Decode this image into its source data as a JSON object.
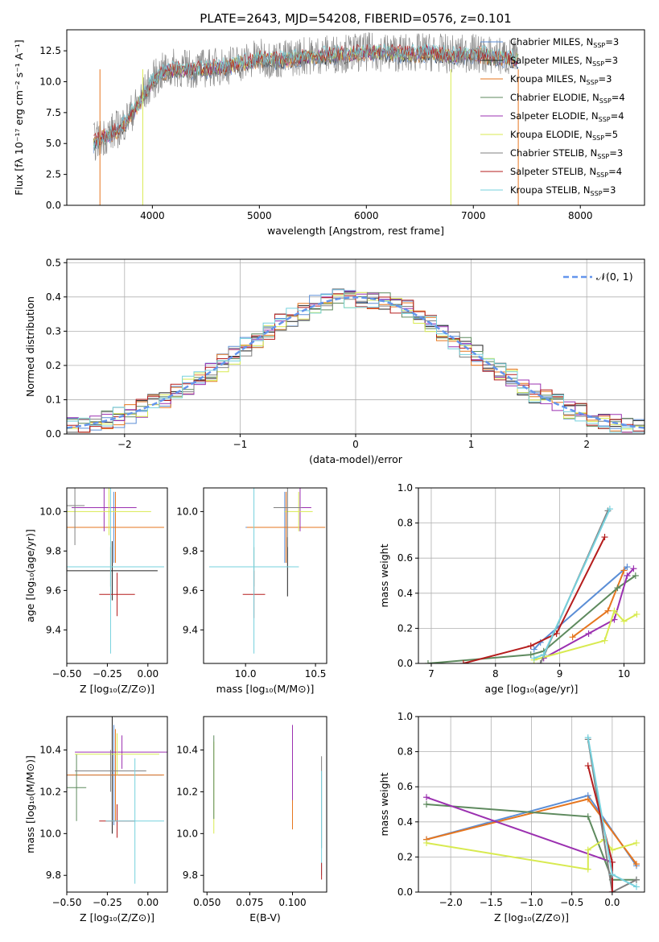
{
  "figure": {
    "title": "PLATE=2643, MJD=54208, FIBERID=0576, z=0.101"
  },
  "colors": {
    "Chabrier MILES": "#5b8ed6",
    "Salpeter MILES": "#222222",
    "Kroupa MILES": "#e6761f",
    "Chabrier ELODIE": "#5e8a5e",
    "Salpeter ELODIE": "#9b30b0",
    "Kroupa ELODIE": "#d8ea50",
    "Chabrier STELIB": "#808080",
    "Salpeter STELIB": "#b51d1d",
    "Kroupa STELIB": "#76d1dd",
    "normal_curve": "#6495ed",
    "grid": "#b0b0b0"
  },
  "chart_data": [
    {
      "id": "spectrum",
      "type": "line",
      "title": "PLATE=2643, MJD=54208, FIBERID=0576, z=0.101",
      "xlabel": "wavelength [Angstrom, rest frame]",
      "ylabel": "Flux [fλ 10⁻¹⁷ erg cm⁻² s⁻¹ A⁻¹]",
      "xlim": [
        3200,
        8600
      ],
      "ylim": [
        0,
        14.2
      ],
      "xticks": [
        "4000",
        "5000",
        "6000",
        "7000",
        "8000"
      ],
      "yticks": [
        "0.0",
        "2.5",
        "5.0",
        "7.5",
        "10.0",
        "12.5"
      ],
      "grid": false,
      "legend_position": "right",
      "legend": [
        {
          "base": "Chabrier MILES, N",
          "n": "=3"
        },
        {
          "base": "Salpeter MILES, N",
          "n": "=3"
        },
        {
          "base": "Kroupa MILES, N",
          "n": "=3"
        },
        {
          "base": "Chabrier ELODIE, N",
          "n": "=4"
        },
        {
          "base": "Salpeter ELODIE, N",
          "n": "=4"
        },
        {
          "base": "Kroupa ELODIE, N",
          "n": "=5"
        },
        {
          "base": "Chabrier STELIB, N",
          "n": "=3"
        },
        {
          "base": "Salpeter STELIB, N",
          "n": "=4"
        },
        {
          "base": "Kroupa STELIB, N",
          "n": "=3"
        }
      ],
      "legend_sub": "SSP",
      "data": {
        "x": [
          3450,
          3550,
          3700,
          3800,
          3900,
          4000,
          4100,
          4200,
          4400,
          4600,
          4800,
          5000,
          5200,
          5400,
          5600,
          5800,
          6000,
          6200,
          6400,
          6600,
          6800,
          7000,
          7200,
          7400
        ],
        "y": [
          5.0,
          5.5,
          6.2,
          7.3,
          8.6,
          10.0,
          10.7,
          11.0,
          10.9,
          11.1,
          11.4,
          11.8,
          11.7,
          12.0,
          12.1,
          12.2,
          12.3,
          12.3,
          12.2,
          12.3,
          12.1,
          12.2,
          12.0,
          11.8
        ]
      }
    },
    {
      "id": "residuals",
      "type": "line",
      "xlabel": "(data-model)/error",
      "ylabel": "Normed distribution",
      "xlim": [
        -2.5,
        2.5
      ],
      "ylim": [
        0,
        0.51
      ],
      "xticks": [
        "−2",
        "−1",
        "0",
        "1",
        "2"
      ],
      "yticks": [
        "0.0",
        "0.1",
        "0.2",
        "0.3",
        "0.4",
        "0.5"
      ],
      "grid": true,
      "legend_position": "top-right",
      "legend_label": "𝒩(0, 1)",
      "normal": {
        "mean": 0,
        "sigma": 1
      }
    },
    {
      "id": "age-vs-Z",
      "type": "scatter",
      "xlabel": "Z [log₁₀(Z/Z⊙)]",
      "ylabel": "age  [log₁₀(age/yr)]",
      "xlim": [
        -0.5,
        0.12
      ],
      "ylim": [
        9.23,
        10.12
      ],
      "xticks": [
        "−0.50",
        "−0.25",
        "0.00"
      ],
      "yticks": [
        "9.4",
        "9.6",
        "9.8",
        "10.0"
      ],
      "points": [
        {
          "m": "Chabrier MILES",
          "x": -0.21,
          "xerr": 0.3,
          "y": 9.92,
          "yerr": 0.18
        },
        {
          "m": "Salpeter MILES",
          "x": -0.22,
          "xerr": 0.28,
          "y": 9.7,
          "yerr": 0.15
        },
        {
          "m": "Kroupa MILES",
          "x": -0.2,
          "xerr": 0.3,
          "y": 9.92,
          "yerr": 0.18
        },
        {
          "m": "Chabrier ELODIE",
          "x": -0.23,
          "xerr": 0.32,
          "y": 9.72,
          "yerr": 0.1
        },
        {
          "m": "Salpeter ELODIE",
          "x": -0.27,
          "xerr": 0.2,
          "y": 10.02,
          "yerr": 0.12
        },
        {
          "m": "Kroupa ELODIE",
          "x": -0.24,
          "xerr": 0.26,
          "y": 10.0,
          "yerr": 0.12
        },
        {
          "m": "Chabrier STELIB",
          "x": -0.45,
          "xerr": 0.06,
          "y": 10.03,
          "yerr": 0.2
        },
        {
          "m": "Salpeter STELIB",
          "x": -0.19,
          "xerr": 0.11,
          "y": 9.58,
          "yerr": 0.11
        },
        {
          "m": "Kroupa STELIB",
          "x": -0.23,
          "xerr": 0.33,
          "y": 9.72,
          "yerr": 0.44
        }
      ]
    },
    {
      "id": "age-vs-mass",
      "type": "scatter",
      "xlabel": "mass [log₁₀(M/M⊙)]",
      "ylabel": "",
      "xlim": [
        9.7,
        10.58
      ],
      "ylim": [
        9.23,
        10.12
      ],
      "xticks": [
        "10.0",
        "10.5"
      ],
      "yticks": [
        "9.4",
        "9.6",
        "9.8",
        "10.0"
      ],
      "points": [
        {
          "m": "Chabrier MILES",
          "x": 10.28,
          "xerr": 0.28,
          "y": 9.92,
          "yerr": 0.18
        },
        {
          "m": "Salpeter MILES",
          "x": 10.3,
          "xerr": 0.02,
          "y": 9.72,
          "yerr": 0.15
        },
        {
          "m": "Kroupa MILES",
          "x": 10.29,
          "xerr": 0.28,
          "y": 9.92,
          "yerr": 0.18
        },
        {
          "m": "Chabrier ELODIE",
          "x": 10.06,
          "xerr": 0.32,
          "y": 9.72,
          "yerr": 0.1
        },
        {
          "m": "Salpeter ELODIE",
          "x": 10.39,
          "xerr": 0.08,
          "y": 10.02,
          "yerr": 0.12
        },
        {
          "m": "Kroupa ELODIE",
          "x": 10.38,
          "xerr": 0.1,
          "y": 10.0,
          "yerr": 0.1
        },
        {
          "m": "Chabrier STELIB",
          "x": 10.3,
          "xerr": 0.1,
          "y": 10.02,
          "yerr": 0.2
        },
        {
          "m": "Salpeter STELIB",
          "x": 10.06,
          "xerr": 0.08,
          "y": 9.58,
          "yerr": 0.12
        },
        {
          "m": "Kroupa STELIB",
          "x": 10.06,
          "xerr": 0.32,
          "y": 9.72,
          "yerr": 0.44
        }
      ]
    },
    {
      "id": "massweight-vs-age",
      "type": "line",
      "xlabel": "age  [log₁₀(age/yr)]",
      "ylabel": "mass weight",
      "xlim": [
        6.8,
        10.32
      ],
      "ylim": [
        0,
        1
      ],
      "xticks": [
        "7",
        "8",
        "9",
        "10"
      ],
      "yticks": [
        "0.0",
        "0.2",
        "0.4",
        "0.6",
        "0.8",
        "1.0"
      ],
      "grid": true,
      "series": [
        {
          "m": "Chabrier MILES",
          "x": [
            8.6,
            8.7,
            10.05
          ],
          "y": [
            0.08,
            0.12,
            0.55
          ]
        },
        {
          "m": "Kroupa MILES",
          "x": [
            9.2,
            9.75,
            10.0
          ],
          "y": [
            0.15,
            0.3,
            0.53
          ]
        },
        {
          "m": "Chabrier ELODIE",
          "x": [
            6.95,
            8.55,
            8.75,
            9.9,
            10.18
          ],
          "y": [
            0.0,
            0.05,
            0.07,
            0.43,
            0.5
          ]
        },
        {
          "m": "Salpeter ELODIE",
          "x": [
            8.75,
            9.45,
            9.85,
            10.05,
            10.15
          ],
          "y": [
            0.03,
            0.17,
            0.25,
            0.5,
            0.54
          ]
        },
        {
          "m": "Kroupa ELODIE",
          "x": [
            8.6,
            9.7,
            9.85,
            10.0,
            10.2
          ],
          "y": [
            0.02,
            0.13,
            0.3,
            0.24,
            0.28
          ]
        },
        {
          "m": "Chabrier STELIB",
          "x": [
            8.7,
            9.75
          ],
          "y": [
            0.0,
            0.87
          ]
        },
        {
          "m": "Salpeter STELIB",
          "x": [
            7.5,
            8.55,
            8.95,
            9.7
          ],
          "y": [
            0.0,
            0.1,
            0.17,
            0.72
          ]
        },
        {
          "m": "Kroupa STELIB",
          "x": [
            8.6,
            8.75,
            9.78
          ],
          "y": [
            0.03,
            0.05,
            0.88
          ]
        }
      ]
    },
    {
      "id": "mass-vs-Z",
      "type": "scatter",
      "xlabel": "Z [log₁₀(Z/Z⊙)]",
      "ylabel": "mass [log₁₀(M/M⊙)]",
      "xlim": [
        -0.5,
        0.12
      ],
      "ylim": [
        9.72,
        10.56
      ],
      "xticks": [
        "−0.50",
        "−0.25",
        "0.00"
      ],
      "yticks": [
        "9.8",
        "10.0",
        "10.2",
        "10.4"
      ],
      "points": [
        {
          "m": "Chabrier MILES",
          "x": -0.21,
          "xerr": 0.3,
          "y": 10.28,
          "yerr": 0.24
        },
        {
          "m": "Salpeter MILES",
          "x": -0.22,
          "xerr": 0.02,
          "y": 10.3,
          "yerr": 0.3
        },
        {
          "m": "Kroupa MILES",
          "x": -0.2,
          "xerr": 0.3,
          "y": 10.28,
          "yerr": 0.22
        },
        {
          "m": "Chabrier ELODIE",
          "x": -0.44,
          "xerr": 0.06,
          "y": 10.22,
          "yerr": 0.16
        },
        {
          "m": "Salpeter ELODIE",
          "x": -0.16,
          "xerr": 0.29,
          "y": 10.39,
          "yerr": 0.08
        },
        {
          "m": "Kroupa ELODIE",
          "x": -0.19,
          "xerr": 0.26,
          "y": 10.38,
          "yerr": 0.1
        },
        {
          "m": "Chabrier STELIB",
          "x": -0.23,
          "xerr": 0.22,
          "y": 10.3,
          "yerr": 0.1
        },
        {
          "m": "Salpeter STELIB",
          "x": -0.19,
          "xerr": 0.11,
          "y": 10.06,
          "yerr": 0.08
        },
        {
          "m": "Kroupa STELIB",
          "x": -0.08,
          "xerr": 0.18,
          "y": 10.06,
          "yerr": 0.3
        }
      ]
    },
    {
      "id": "mass-vs-ebv",
      "type": "scatter",
      "xlabel": "E(B-V)",
      "ylabel": "",
      "xlim": [
        0.048,
        0.12
      ],
      "ylim": [
        9.72,
        10.56
      ],
      "xticks": [
        "0.050",
        "0.075",
        "0.100"
      ],
      "yticks": [
        "9.8",
        "10.0",
        "10.2",
        "10.4"
      ],
      "points": [
        {
          "m": "Chabrier MILES",
          "x": 0.1,
          "xerr": 0,
          "y": 10.26,
          "yerr": 0.18
        },
        {
          "m": "Kroupa MILES",
          "x": 0.1,
          "xerr": 0,
          "y": 10.22,
          "yerr": 0.2
        },
        {
          "m": "Salpeter ELODIE",
          "x": 0.1,
          "xerr": 0,
          "y": 10.34,
          "yerr": 0.18
        },
        {
          "m": "Kroupa ELODIE",
          "x": 0.054,
          "xerr": 0,
          "y": 10.22,
          "yerr": 0.22
        },
        {
          "m": "Chabrier ELODIE",
          "x": 0.054,
          "xerr": 0,
          "y": 10.27,
          "yerr": 0.2
        },
        {
          "m": "Chabrier STELIB",
          "x": 0.117,
          "xerr": 0,
          "y": 10.15,
          "yerr": 0.22
        },
        {
          "m": "Kroupa STELIB",
          "x": 0.117,
          "xerr": 0,
          "y": 10.05,
          "yerr": 0.25
        },
        {
          "m": "Salpeter STELIB",
          "x": 0.117,
          "xerr": 0,
          "y": 9.82,
          "yerr": 0.04
        }
      ]
    },
    {
      "id": "massweight-vs-Z",
      "type": "line",
      "xlabel": "Z [log₁₀(Z/Z⊙)]",
      "ylabel": "mass weight",
      "xlim": [
        -2.4,
        0.4
      ],
      "ylim": [
        0,
        1
      ],
      "xticks": [
        "−2.0",
        "−1.5",
        "−1.0",
        "−0.5",
        "0.0"
      ],
      "yticks": [
        "0.0",
        "0.2",
        "0.4",
        "0.6",
        "0.8",
        "1.0"
      ],
      "grid": true,
      "series": [
        {
          "m": "Chabrier MILES",
          "x": [
            -2.3,
            -0.3,
            0.3
          ],
          "y": [
            0.3,
            0.55,
            0.15
          ]
        },
        {
          "m": "Kroupa MILES",
          "x": [
            -2.3,
            -0.3,
            0.3
          ],
          "y": [
            0.3,
            0.53,
            0.16
          ]
        },
        {
          "m": "Chabrier ELODIE",
          "x": [
            -2.3,
            -0.3,
            0.0,
            0.3
          ],
          "y": [
            0.5,
            0.43,
            0.07,
            0.07
          ]
        },
        {
          "m": "Salpeter ELODIE",
          "x": [
            -2.3,
            0.0,
            0.0
          ],
          "y": [
            0.54,
            0.17,
            0.0
          ]
        },
        {
          "m": "Kroupa ELODIE",
          "x": [
            -2.3,
            -0.3,
            -0.3,
            -0.1,
            0.0,
            0.3
          ],
          "y": [
            0.28,
            0.13,
            0.24,
            0.3,
            0.24,
            0.28
          ]
        },
        {
          "m": "Chabrier STELIB",
          "x": [
            -0.3,
            0.0,
            0.3
          ],
          "y": [
            0.87,
            0.0,
            0.07
          ]
        },
        {
          "m": "Salpeter STELIB",
          "x": [
            -0.3,
            0.0,
            0.0
          ],
          "y": [
            0.72,
            0.17,
            0.0
          ]
        },
        {
          "m": "Kroupa STELIB",
          "x": [
            -0.3,
            0.0,
            0.3
          ],
          "y": [
            0.88,
            0.1,
            0.03
          ]
        }
      ]
    }
  ]
}
